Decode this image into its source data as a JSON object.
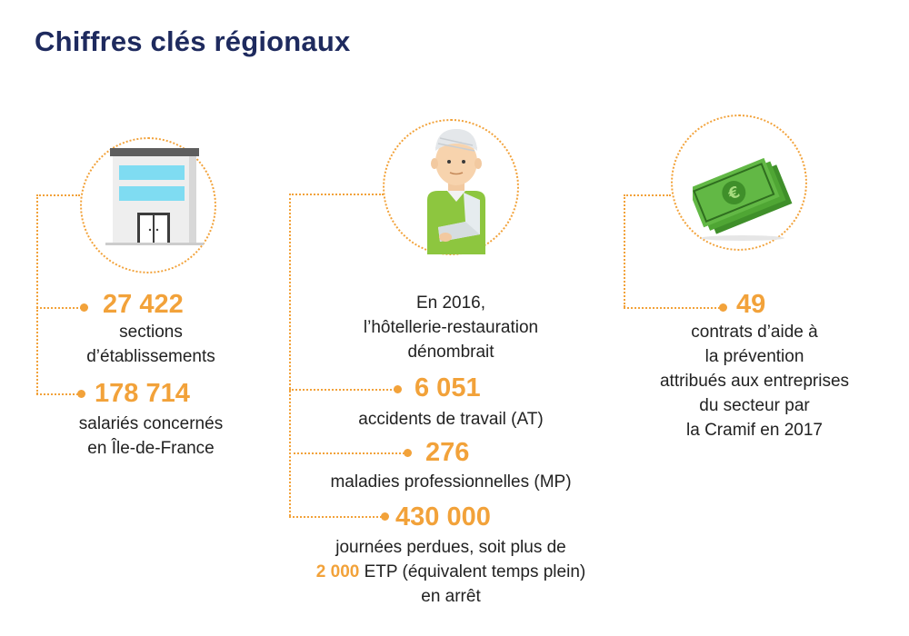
{
  "title": "Chiffres clés régionaux",
  "colors": {
    "accent": "#f2a23a",
    "title": "#1e2a5e"
  },
  "icons": {
    "col1": "building-icon",
    "col2": "injured-worker-icon",
    "col3": "euro-banknotes-icon"
  },
  "col1": {
    "stat1": {
      "value": "27 422",
      "lines": [
        "sections",
        "d’établissements"
      ]
    },
    "stat2": {
      "value": "178 714",
      "lines": [
        "salariés concernés",
        "en Île-de-France"
      ]
    }
  },
  "col2": {
    "intro": [
      "En 2016,",
      "l’hôtellerie-restauration",
      "dénombrait"
    ],
    "stat1": {
      "value": "6 051",
      "lines": [
        "accidents de travail (AT)"
      ]
    },
    "stat2": {
      "value": "276",
      "lines": [
        "maladies professionnelles (MP)"
      ]
    },
    "stat3": {
      "value": "430 000",
      "line1": "journées perdues, soit plus de",
      "line2_value": "2 000",
      "line2_text": " ETP (équivalent temps plein)",
      "line3": "en arrêt"
    }
  },
  "col3": {
    "stat1": {
      "value": "49",
      "lines": [
        "contrats d’aide à",
        "la prévention",
        "attribués aux entreprises",
        "du secteur par",
        "la Cramif en 2017"
      ]
    }
  }
}
